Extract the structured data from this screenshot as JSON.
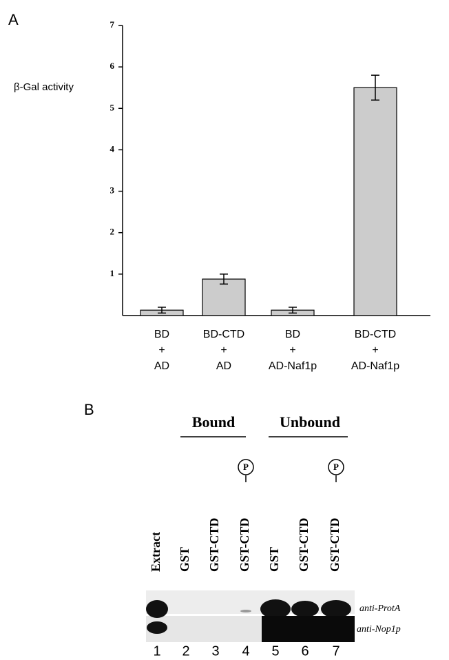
{
  "panel_a": {
    "label": "A"
  },
  "chart_data": {
    "type": "bar",
    "ylabel": "β-Gal activity",
    "categories": [
      [
        "BD",
        "+",
        "AD"
      ],
      [
        "BD-CTD",
        "+",
        "AD"
      ],
      [
        "BD",
        "+",
        "AD-Naf1p"
      ],
      [
        "BD-CTD",
        "+",
        "AD-Naf1p"
      ]
    ],
    "values": [
      0.13,
      0.88,
      0.13,
      5.5
    ],
    "errors": [
      0.07,
      0.12,
      0.07,
      0.3
    ],
    "color": "#cccccc",
    "ylim": [
      0,
      7
    ],
    "yticks": [
      1,
      2,
      3,
      4,
      5,
      6,
      7
    ]
  },
  "panel_b": {
    "label": "B",
    "groups": [
      "Bound",
      "Unbound"
    ],
    "lanes": [
      "Extract",
      "GST",
      "GST-CTD",
      "GST-CTD",
      "GST",
      "GST-CTD",
      "GST-CTD"
    ],
    "phospho": "P",
    "blots": [
      "anti-ProtA",
      "anti-Nop1p"
    ],
    "lane_numbers": [
      "1",
      "2",
      "3",
      "4",
      "5",
      "6",
      "7"
    ]
  }
}
